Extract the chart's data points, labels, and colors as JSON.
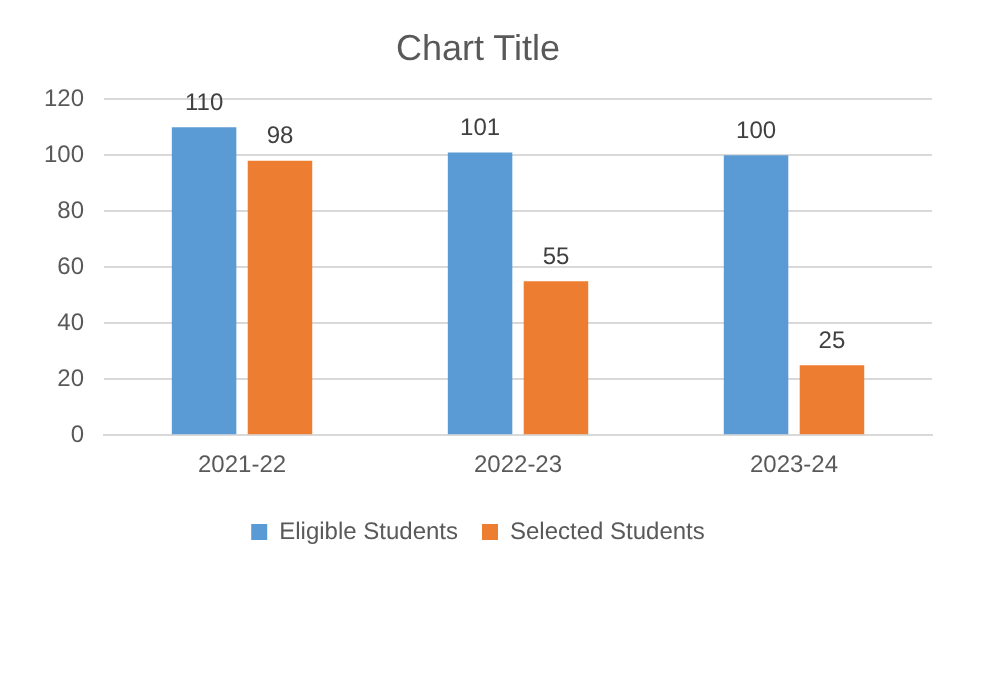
{
  "chart_data": {
    "type": "bar",
    "title": "Chart Title",
    "categories": [
      "2021-22",
      "2022-23",
      "2023-24"
    ],
    "series": [
      {
        "name": "Eligible Students",
        "color": "#5b9bd5",
        "values": [
          110,
          101,
          100
        ]
      },
      {
        "name": "Selected Students",
        "color": "#ed7d31",
        "values": [
          98,
          55,
          25
        ]
      }
    ],
    "ylim": [
      0,
      120
    ],
    "yticks": [
      0,
      20,
      40,
      60,
      80,
      100,
      120
    ],
    "grid": "y",
    "legend": "bottom",
    "data_labels": true
  }
}
